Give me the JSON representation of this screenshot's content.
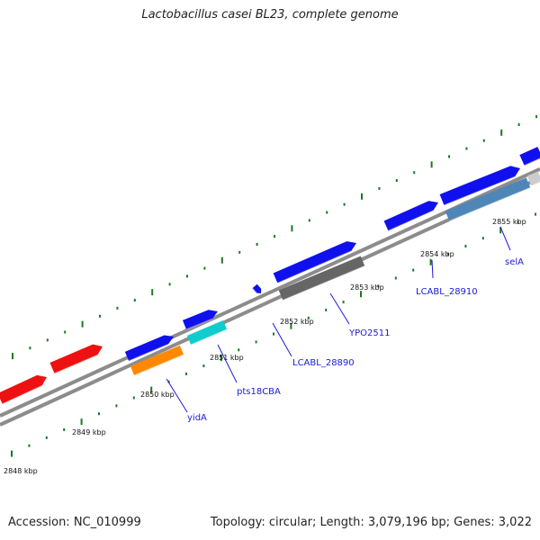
{
  "title": "Lactobacillus casei BL23, complete genome",
  "footer": {
    "accession": "Accession: NC_010999",
    "summary": "Topology: circular; Length: 3,079,196 bp; Genes: 3,022"
  },
  "colors": {
    "backbone": "#8c8c8c",
    "tick": "#1a7a1a",
    "gene_label": "#1a1ad6",
    "kbp_label": "#111111",
    "red": "#ee1111",
    "blue": "#1010ee",
    "orange": "#ff8800",
    "cyan": "#11cccc",
    "gray": "#666666",
    "steelblue": "#4f86b8",
    "lightgray": "#cccccc"
  },
  "kbp_labels": [
    "2848 kbp",
    "2849 kbp",
    "2850 kbp",
    "2851 kbp",
    "2852 kbp",
    "2853 kbp",
    "2854 kbp",
    "2855 kbp"
  ],
  "gene_labels": [
    "yidA",
    "pts18CBA",
    "LCABL_28890",
    "YPO2511",
    "LCABL_28910",
    "selA"
  ]
}
